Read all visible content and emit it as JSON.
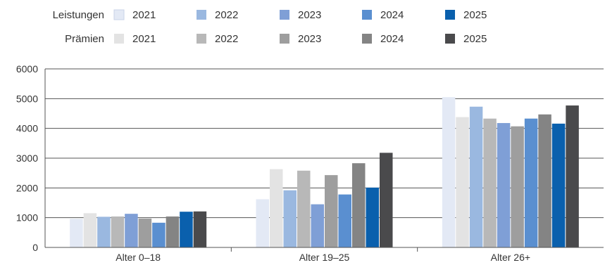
{
  "chart_data": {
    "type": "bar",
    "categories": [
      "Alter 0–18",
      "Alter 19–25",
      "Alter 26+"
    ],
    "ylim": [
      0,
      6000
    ],
    "yticks": [
      0,
      1000,
      2000,
      3000,
      4000,
      5000,
      6000
    ],
    "grid": true,
    "legend_position": "top-left",
    "legend_groups": [
      {
        "label": "Leistungen",
        "entries": [
          "2021",
          "2022",
          "2023",
          "2024",
          "2025"
        ]
      },
      {
        "label": "Prämien",
        "entries": [
          "2021",
          "2022",
          "2023",
          "2024",
          "2025"
        ]
      }
    ],
    "series_order": [
      "Leistungen 2021",
      "Prämien 2021",
      "Leistungen 2022",
      "Prämien 2022",
      "Leistungen 2023",
      "Prämien 2023",
      "Leistungen 2024",
      "Prämien 2024",
      "Leistungen 2025",
      "Prämien 2025"
    ],
    "series": [
      {
        "group": "Leistungen",
        "year": "2021",
        "color": "#e3e9f5",
        "values": [
          960,
          1620,
          5050
        ]
      },
      {
        "group": "Prämien",
        "year": "2021",
        "color": "#e3e3e3",
        "values": [
          1150,
          2630,
          4380
        ]
      },
      {
        "group": "Leistungen",
        "year": "2022",
        "color": "#9ab8e0",
        "values": [
          1030,
          1920,
          4730
        ]
      },
      {
        "group": "Prämien",
        "year": "2022",
        "color": "#b8b8b8",
        "values": [
          1040,
          2580,
          4330
        ]
      },
      {
        "group": "Leistungen",
        "year": "2023",
        "color": "#7f9fd6",
        "values": [
          1130,
          1450,
          4180
        ]
      },
      {
        "group": "Prämien",
        "year": "2023",
        "color": "#9e9e9e",
        "values": [
          970,
          2430,
          4070
        ]
      },
      {
        "group": "Leistungen",
        "year": "2024",
        "color": "#5a8fd0",
        "values": [
          830,
          1780,
          4330
        ]
      },
      {
        "group": "Prämien",
        "year": "2024",
        "color": "#848484",
        "values": [
          1040,
          2830,
          4470
        ]
      },
      {
        "group": "Leistungen",
        "year": "2025",
        "color": "#0a60ad",
        "values": [
          1200,
          2010,
          4160
        ]
      },
      {
        "group": "Prämien",
        "year": "2025",
        "color": "#4a4a4c",
        "values": [
          1210,
          3180,
          4770
        ]
      }
    ]
  }
}
